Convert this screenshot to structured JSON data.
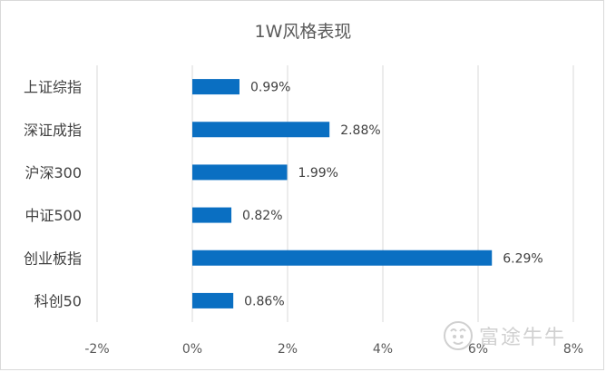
{
  "chart_data": {
    "type": "bar",
    "orientation": "horizontal",
    "title": "1W风格表现",
    "categories": [
      "上证综指",
      "深证成指",
      "沪深300",
      "中证500",
      "创业板指",
      "科创50"
    ],
    "values": [
      0.99,
      2.88,
      1.99,
      0.82,
      6.29,
      0.86
    ],
    "data_labels": [
      "0.99%",
      "2.88%",
      "1.99%",
      "0.82%",
      "6.29%",
      "0.86%"
    ],
    "xlim": [
      -2,
      8
    ],
    "xticks": [
      -2,
      0,
      2,
      4,
      6,
      8
    ],
    "xtick_labels": [
      "-2%",
      "0%",
      "2%",
      "4%",
      "6%",
      "8%"
    ],
    "grid": true,
    "legend": "none",
    "bar_color": "#0a6fc2"
  },
  "watermark": {
    "text": "富途牛牛",
    "icon": "futu-bull-icon"
  }
}
